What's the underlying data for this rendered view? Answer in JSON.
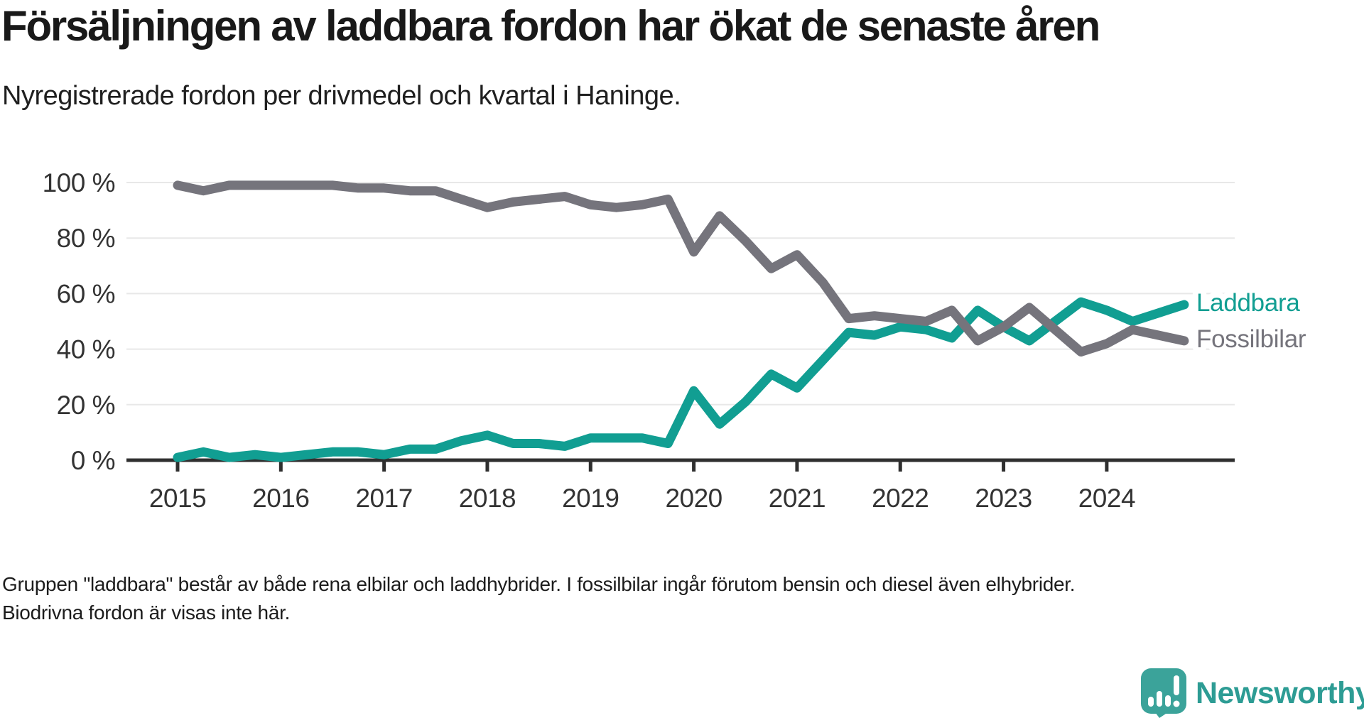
{
  "header": {
    "title": "Försäljningen av laddbara fordon har ökat de senaste åren",
    "subtitle": "Nyregistrerade fordon per drivmedel och kvartal i Haninge."
  },
  "footer": {
    "note": "Gruppen \"laddbara\" består av både rena elbilar och laddhybrider. I fossilbilar ingår förutom bensin och diesel även elhybrider. Biodrivna fordon är visas inte här.",
    "brand": "Newsworthy"
  },
  "colors": {
    "laddbara": "#119e92",
    "fossilbilar": "#75747c",
    "grid": "#e8e8e8",
    "axis": "#2f2f2f",
    "axis_text": "#333333",
    "logo_bubble": "#3ba39a",
    "logo_text": "#2d9c94"
  },
  "chart_data": {
    "type": "line",
    "title": "Försäljningen av laddbara fordon har ökat de senaste åren",
    "subtitle": "Nyregistrerade fordon per drivmedel och kvartal i Haninge.",
    "unit": "% of newly registered vehicles",
    "x_resolution": "quarterly, 2015 Q1 – 2024 Q4 (4 points per year)",
    "x_tick_labels": [
      "2015",
      "2016",
      "2017",
      "2018",
      "2019",
      "2020",
      "2021",
      "2022",
      "2023",
      "2024"
    ],
    "y_tick_labels": [
      "0 %",
      "20 %",
      "40 %",
      "60 %",
      "80 %",
      "100 %"
    ],
    "y_tick_values": [
      0,
      20,
      40,
      60,
      80,
      100
    ],
    "ylim": [
      0,
      100
    ],
    "grid": "horizontal",
    "legend_position": "right end of lines",
    "series": [
      {
        "name": "Laddbara",
        "color": "#119e92",
        "values": [
          1,
          3,
          1,
          2,
          1,
          2,
          3,
          3,
          2,
          4,
          4,
          7,
          9,
          6,
          6,
          5,
          8,
          8,
          8,
          6,
          25,
          13,
          21,
          31,
          26,
          36,
          46,
          45,
          48,
          47,
          44,
          54,
          48,
          43,
          50,
          57,
          54,
          50,
          53,
          56
        ]
      },
      {
        "name": "Fossilbilar",
        "color": "#75747c",
        "values": [
          99,
          97,
          99,
          99,
          99,
          99,
          99,
          98,
          98,
          97,
          97,
          94,
          91,
          93,
          94,
          95,
          92,
          91,
          92,
          94,
          75,
          88,
          79,
          69,
          74,
          64,
          51,
          52,
          51,
          50,
          54,
          43,
          48,
          55,
          47,
          39,
          42,
          47,
          45,
          43
        ]
      }
    ]
  }
}
